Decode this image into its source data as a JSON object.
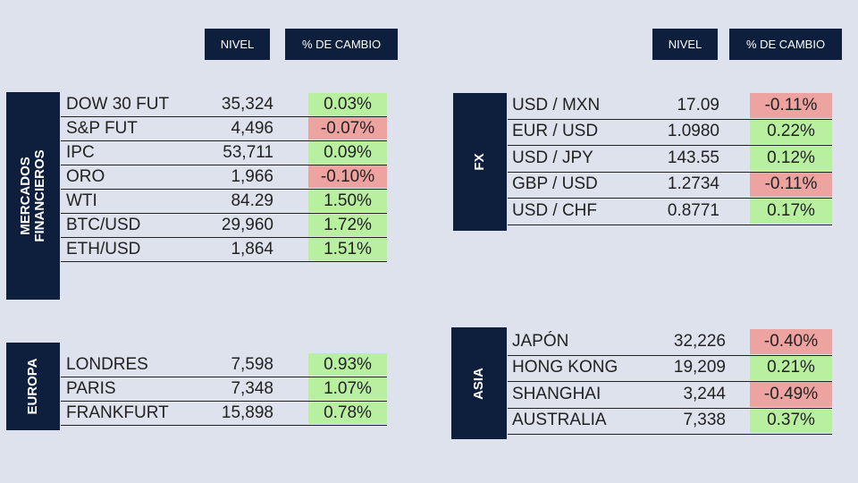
{
  "headers": [
    {
      "nivel": "NIVEL",
      "cambio": "% DE CAMBIO"
    },
    {
      "nivel": "NIVEL",
      "cambio": "% DE CAMBIO"
    }
  ],
  "sections": [
    {
      "label": [
        "MERCADOS",
        "FINANCIEROS"
      ],
      "rows": [
        [
          "DOW 30 FUT",
          "35,324",
          "0.03%"
        ],
        [
          "S&P FUT",
          "4,496",
          "-0.07%"
        ],
        [
          "IPC",
          "53,711",
          "0.09%"
        ],
        [
          "ORO",
          "1,966",
          "-0.10%"
        ],
        [
          "WTI",
          "84.29",
          "1.50%"
        ],
        [
          "BTC/USD",
          "29,960",
          "1.72%"
        ],
        [
          "ETH/USD",
          "1,864",
          "1.51%"
        ]
      ]
    },
    {
      "label": [
        "FX"
      ],
      "rows": [
        [
          "USD / MXN",
          "17.09",
          "-0.11%"
        ],
        [
          "EUR / USD",
          "1.0980",
          "0.22%"
        ],
        [
          "USD / JPY",
          "143.55",
          "0.12%"
        ],
        [
          "GBP / USD",
          "1.2734",
          "-0.11%"
        ],
        [
          "USD / CHF",
          "0.8771",
          "0.17%"
        ]
      ]
    },
    {
      "label": [
        "EUROPA"
      ],
      "rows": [
        [
          "LONDRES",
          "7,598",
          "0.93%"
        ],
        [
          "PARIS",
          "7,348",
          "1.07%"
        ],
        [
          "FRANKFURT",
          "15,898",
          "0.78%"
        ]
      ]
    },
    {
      "label": [
        "ASIA"
      ],
      "rows": [
        [
          "JAPÓN",
          "32,226",
          "-0.40%"
        ],
        [
          "HONG KONG",
          "19,209",
          "0.21%"
        ],
        [
          "SHANGHAI",
          "3,244",
          "-0.49%"
        ],
        [
          "AUSTRALIA",
          "7,338",
          "0.37%"
        ]
      ]
    }
  ],
  "colors": {
    "up": "#b9f0a0",
    "down": "#eda3a0"
  }
}
